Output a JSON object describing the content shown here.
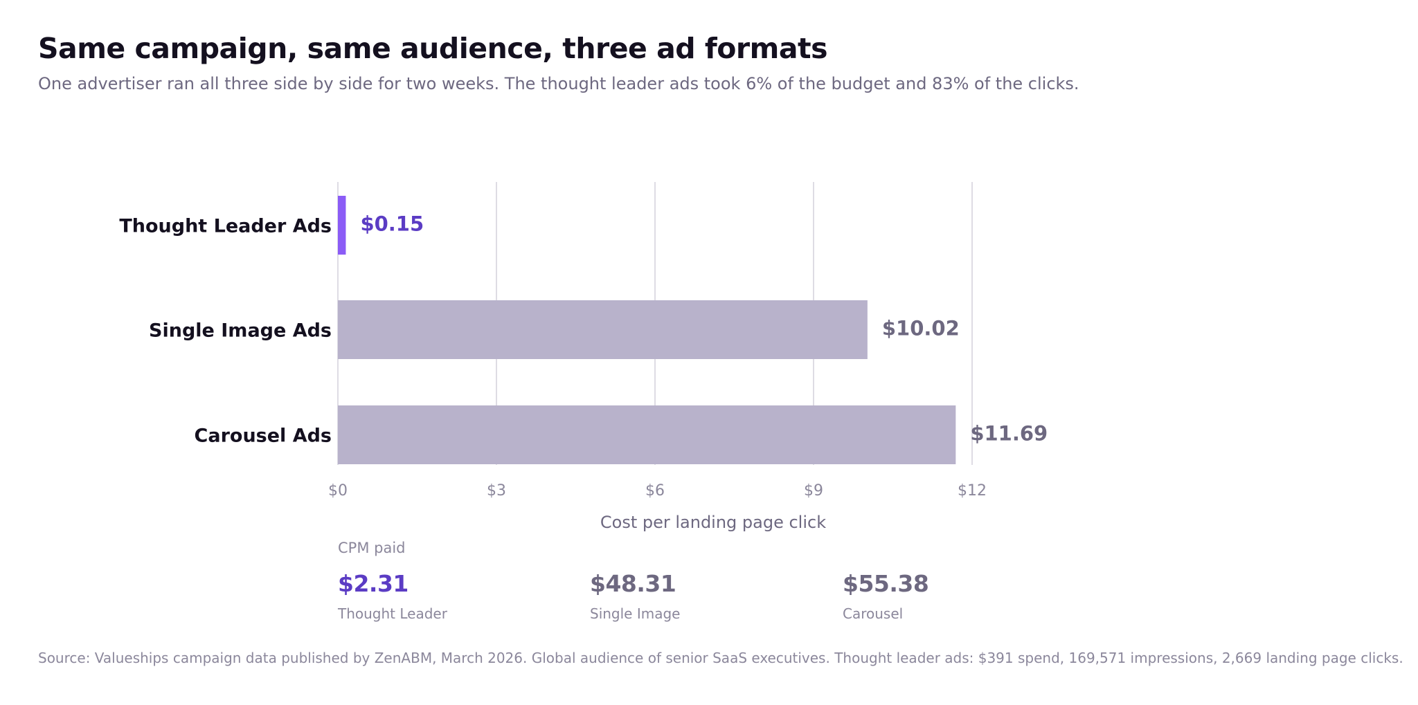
{
  "header": {
    "title": "Same campaign, same audience, three ad formats",
    "subtitle": "One advertiser ran all three side by side for two weeks. The thought leader ads took 6% of the budget and 83% of the clicks."
  },
  "chart_data": {
    "type": "bar",
    "orientation": "horizontal",
    "categories": [
      "Thought Leader Ads",
      "Single Image Ads",
      "Carousel Ads"
    ],
    "values": [
      0.15,
      10.02,
      11.69
    ],
    "value_labels": [
      "$0.15",
      "$10.02",
      "$11.69"
    ],
    "xlabel": "Cost per landing page click",
    "xlim": [
      0,
      12
    ],
    "xticks": [
      0,
      3,
      6,
      9,
      12
    ],
    "xtick_labels": [
      "$0",
      "$3",
      "$6",
      "$9",
      "$12"
    ],
    "grid": "vertical",
    "colors": {
      "highlight_bar": "#8b5cf6",
      "highlight_label": "#5b3cc4",
      "bar": "#b8b2cb",
      "bar_label": "#6d6880",
      "gridline": "#dedce4",
      "category_label": "#14101f",
      "tick_label": "#8b879b",
      "axis_title": "#6d6880"
    }
  },
  "cpm": {
    "heading": "CPM paid",
    "items": [
      {
        "value": "$2.31",
        "label": "Thought Leader",
        "color": "#5b3cc4"
      },
      {
        "value": "$48.31",
        "label": "Single Image",
        "color": "#6d6880"
      },
      {
        "value": "$55.38",
        "label": "Carousel",
        "color": "#6d6880"
      }
    ]
  },
  "footer": {
    "source": "Source: Valueships campaign data published by ZenABM, March 2026. Global audience of senior SaaS executives. Thought leader ads: $391 spend, 169,571 impressions, 2,669 landing page clicks."
  }
}
